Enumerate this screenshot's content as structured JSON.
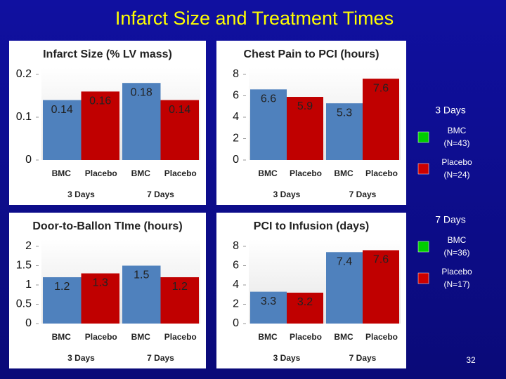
{
  "title": "Infarct Size and Treatment Times",
  "chart_data": [
    {
      "type": "bar",
      "title": "Infarct Size (% LV mass)",
      "categories": [
        "BMC",
        "Placebo",
        "BMC",
        "Placebo"
      ],
      "groups": [
        "3 Days",
        "7 Days"
      ],
      "values": [
        0.14,
        0.16,
        0.18,
        0.14
      ],
      "colors": [
        "#4f81bd",
        "#c00000",
        "#4f81bd",
        "#c00000"
      ],
      "ylim": [
        0,
        0.2
      ],
      "yticks": [
        0,
        0.1,
        0.2
      ]
    },
    {
      "type": "bar",
      "title": "Chest Pain to PCI (hours)",
      "categories": [
        "BMC",
        "Placebo",
        "BMC",
        "Placebo"
      ],
      "groups": [
        "3 Days",
        "7 Days"
      ],
      "values": [
        6.6,
        5.9,
        5.3,
        7.6
      ],
      "colors": [
        "#4f81bd",
        "#c00000",
        "#4f81bd",
        "#c00000"
      ],
      "ylim": [
        0,
        8
      ],
      "yticks": [
        0,
        2,
        4,
        6,
        8
      ]
    },
    {
      "type": "bar",
      "title": "Door-to-Ballon TIme (hours)",
      "categories": [
        "BMC",
        "Placebo",
        "BMC",
        "Placebo"
      ],
      "groups": [
        "3 Days",
        "7 Days"
      ],
      "values": [
        1.2,
        1.3,
        1.5,
        1.2
      ],
      "colors": [
        "#4f81bd",
        "#c00000",
        "#4f81bd",
        "#c00000"
      ],
      "ylim": [
        0,
        2
      ],
      "yticks": [
        0,
        0.5,
        1,
        1.5,
        2
      ]
    },
    {
      "type": "bar",
      "title": "PCI to Infusion (days)",
      "categories": [
        "BMC",
        "Placebo",
        "BMC",
        "Placebo"
      ],
      "groups": [
        "3 Days",
        "7 Days"
      ],
      "values": [
        3.3,
        3.2,
        7.4,
        7.6
      ],
      "colors": [
        "#4f81bd",
        "#c00000",
        "#4f81bd",
        "#c00000"
      ],
      "ylim": [
        0,
        8
      ],
      "yticks": [
        0,
        2,
        4,
        6,
        8
      ]
    }
  ],
  "legend": [
    {
      "title": "3 Days",
      "items": [
        {
          "label": "BMC",
          "n": "(N=43)",
          "color": "#00cc00"
        },
        {
          "label": "Placebo",
          "n": "(N=24)",
          "color": "#cc0000"
        }
      ]
    },
    {
      "title": "7 Days",
      "items": [
        {
          "label": "BMC",
          "n": "(N=36)",
          "color": "#00cc00"
        },
        {
          "label": "Placebo",
          "n": "(N=17)",
          "color": "#cc0000"
        }
      ]
    }
  ],
  "page_number": "32"
}
